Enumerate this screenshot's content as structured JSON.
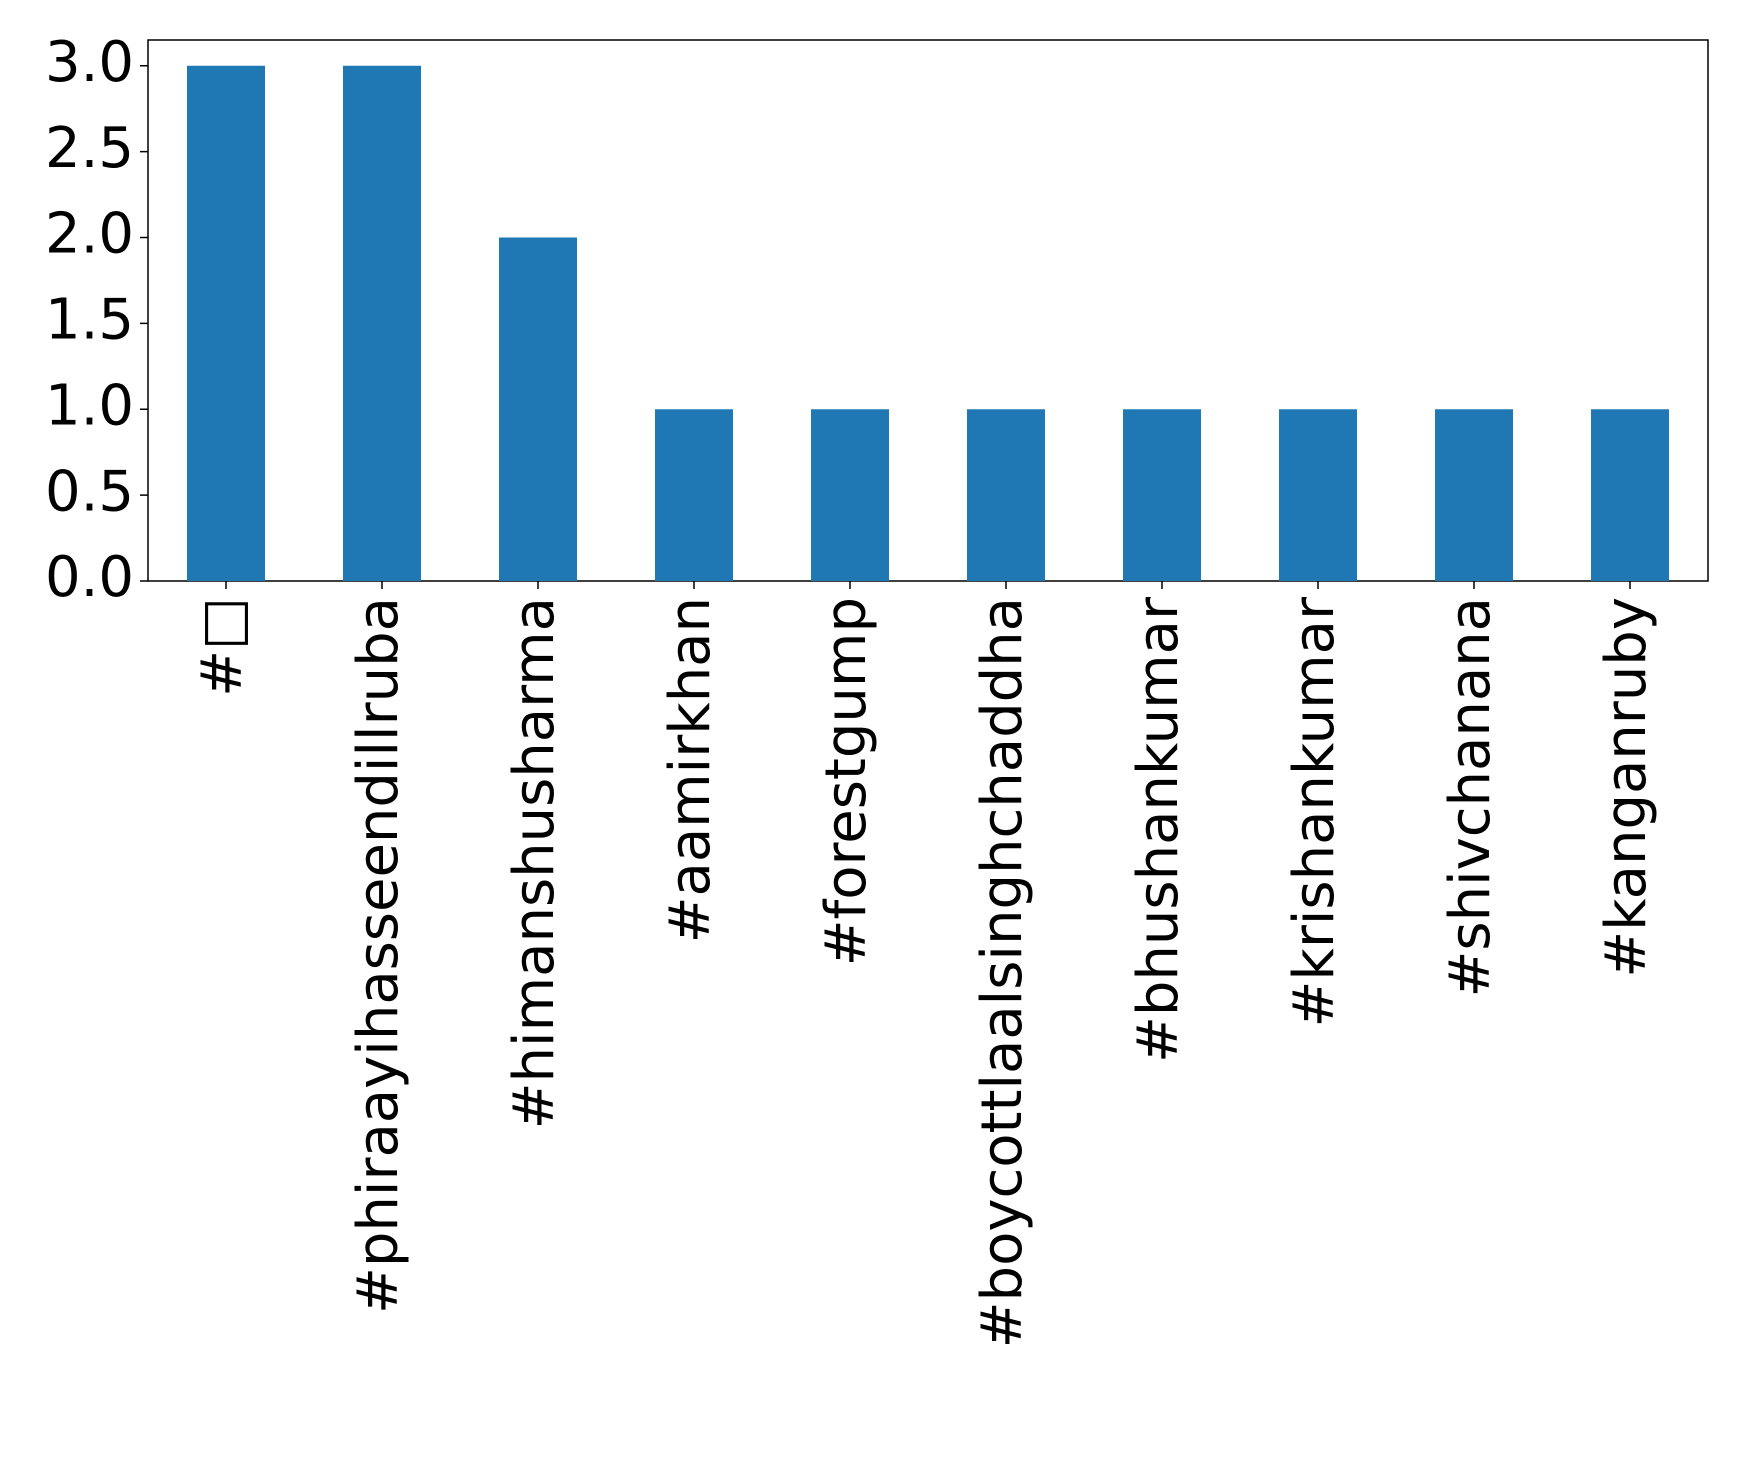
{
  "chart_data": {
    "type": "bar",
    "categories": [
      "#□",
      "#phiraayihasseendillruba",
      "#himanshusharma",
      "#aamirkhan",
      "#forestgump",
      "#boycottlaalsinghchaddha",
      "#bhushankumar",
      "#krishankumar",
      "#shivchanana",
      "#kanganruby"
    ],
    "values": [
      3,
      3,
      2,
      1,
      1,
      1,
      1,
      1,
      1,
      1
    ],
    "color": "#1f77b4",
    "ylim": [
      0,
      3.15
    ],
    "yticks": [
      {
        "value": 0,
        "label": "0.0"
      },
      {
        "value": 0.5,
        "label": "0.5"
      },
      {
        "value": 1,
        "label": "1.0"
      },
      {
        "value": 1.5,
        "label": "1.5"
      },
      {
        "value": 2,
        "label": "2.0"
      },
      {
        "value": 2.5,
        "label": "2.5"
      },
      {
        "value": 3,
        "label": "3.0"
      }
    ],
    "grid": false
  }
}
